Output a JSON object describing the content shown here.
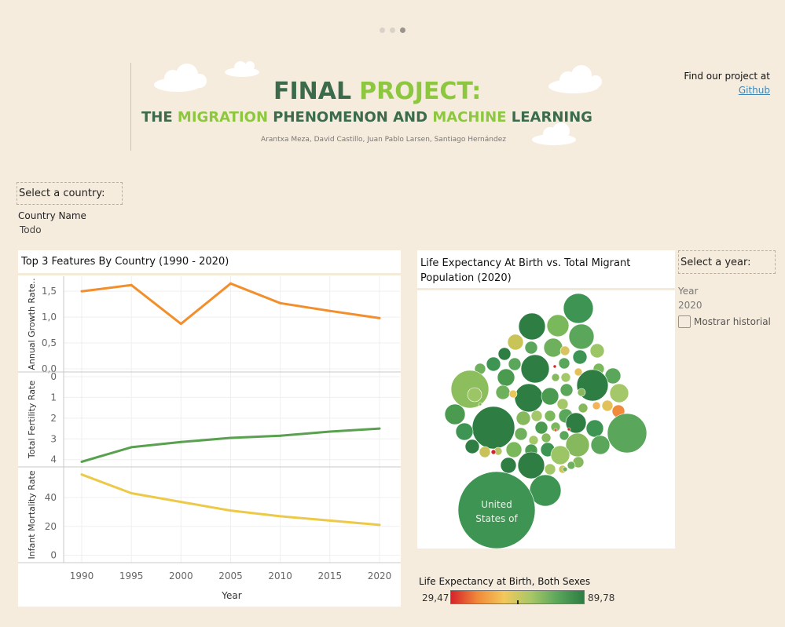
{
  "carousel": {
    "dots": 3,
    "active_index": 2
  },
  "banner": {
    "title_word1": "FINAL",
    "title_word2": "PROJECT:",
    "subtitle_parts": [
      "THE ",
      "MIGRATION",
      " PHENOMENON AND ",
      "MACHINE",
      " LEARNING"
    ],
    "authors": "Arantxa Meza, David Castillo, Juan Pablo Larsen, Santiago Hernández"
  },
  "links": {
    "find_text": "Find our project at",
    "github_label": "Github"
  },
  "country_filter": {
    "header": "Select a country:",
    "label": "Country Name",
    "value": "Todo"
  },
  "year_filter": {
    "header": "Select a year:",
    "label": "Year",
    "value": "2020",
    "show_history_label": "Mostrar historial",
    "show_history_checked": false
  },
  "colors": {
    "growth": "#f28e2b",
    "fertility": "#59a14f",
    "mortality": "#edc948",
    "bg": "#f6ecdd"
  },
  "chart_data": [
    {
      "type": "line",
      "title": "Top 3 Features By Country (1990 - 2020)",
      "xlabel": "Year",
      "x": [
        1990,
        1995,
        2000,
        2005,
        2010,
        2015,
        2020
      ],
      "x_ticks": [
        "1990",
        "1995",
        "2000",
        "2005",
        "2010",
        "2015",
        "2020"
      ],
      "panels": [
        {
          "name": "Annual Growth Rate",
          "ylabel": "Annual Growth Rate..",
          "values": [
            1.5,
            1.62,
            0.87,
            1.65,
            1.27,
            1.12,
            0.98
          ],
          "ylim": [
            0,
            1.7
          ],
          "ticks": [
            0,
            0.5,
            1.0,
            1.5
          ],
          "tick_labels": [
            "0,0",
            "0,5",
            "1,0",
            "1,5"
          ],
          "reversed": false
        },
        {
          "name": "Total Fertility Rate",
          "ylabel": "Total Fertility Rate",
          "values": [
            4.1,
            3.4,
            3.15,
            2.95,
            2.85,
            2.65,
            2.5
          ],
          "ylim": [
            0,
            4.2
          ],
          "ticks": [
            0,
            1,
            2,
            3,
            4
          ],
          "tick_labels": [
            "0",
            "1",
            "2",
            "3",
            "4"
          ],
          "reversed": true
        },
        {
          "name": "Infant Mortality Rate",
          "ylabel": "Infant Mortality Rate",
          "values": [
            56,
            43,
            37,
            31,
            27,
            24,
            21
          ],
          "ylim": [
            -3,
            58
          ],
          "ticks": [
            0,
            20,
            40
          ],
          "tick_labels": [
            "0",
            "20",
            "40"
          ],
          "reversed": false
        }
      ]
    },
    {
      "type": "bubble",
      "title": "Life Expectancy At Birth vs. Total Migrant Population (2020)",
      "label": "United States of",
      "legend": {
        "title": "Life Expectancy at Birth, Both Sexes",
        "min": 29.47,
        "max": 89.78,
        "min_label": "29,47",
        "max_label": "89,78"
      }
    }
  ]
}
